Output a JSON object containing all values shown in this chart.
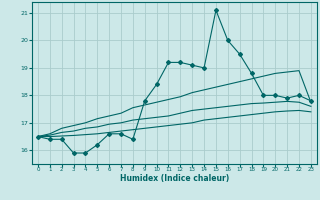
{
  "xlabel": "Humidex (Indice chaleur)",
  "background_color": "#cce8e8",
  "grid_color": "#aacccc",
  "line_color": "#006666",
  "ylim": [
    15.5,
    21.4
  ],
  "xlim": [
    -0.5,
    23.5
  ],
  "yticks": [
    16,
    17,
    18,
    19,
    20,
    21
  ],
  "xticks": [
    0,
    1,
    2,
    3,
    4,
    5,
    6,
    7,
    8,
    9,
    10,
    11,
    12,
    13,
    14,
    15,
    16,
    17,
    18,
    19,
    20,
    21,
    22,
    23
  ],
  "main_y": [
    16.5,
    16.4,
    16.4,
    15.9,
    15.9,
    16.2,
    16.6,
    16.6,
    16.4,
    17.8,
    18.4,
    19.2,
    19.2,
    19.1,
    19.0,
    21.1,
    20.0,
    19.5,
    18.8,
    18.0,
    18.0,
    17.9,
    18.0,
    17.8
  ],
  "upper_y": [
    16.5,
    16.6,
    16.8,
    16.9,
    17.0,
    17.15,
    17.25,
    17.35,
    17.55,
    17.65,
    17.75,
    17.85,
    17.95,
    18.1,
    18.2,
    18.3,
    18.4,
    18.5,
    18.6,
    18.7,
    18.8,
    18.85,
    18.9,
    17.75
  ],
  "mid_y": [
    16.5,
    16.55,
    16.65,
    16.7,
    16.8,
    16.85,
    16.95,
    17.0,
    17.1,
    17.15,
    17.2,
    17.25,
    17.35,
    17.45,
    17.5,
    17.55,
    17.6,
    17.65,
    17.7,
    17.72,
    17.75,
    17.78,
    17.75,
    17.6
  ],
  "lower_y": [
    16.5,
    16.5,
    16.52,
    16.54,
    16.57,
    16.6,
    16.65,
    16.7,
    16.75,
    16.8,
    16.85,
    16.9,
    16.95,
    17.0,
    17.1,
    17.15,
    17.2,
    17.25,
    17.3,
    17.35,
    17.4,
    17.43,
    17.45,
    17.4
  ]
}
